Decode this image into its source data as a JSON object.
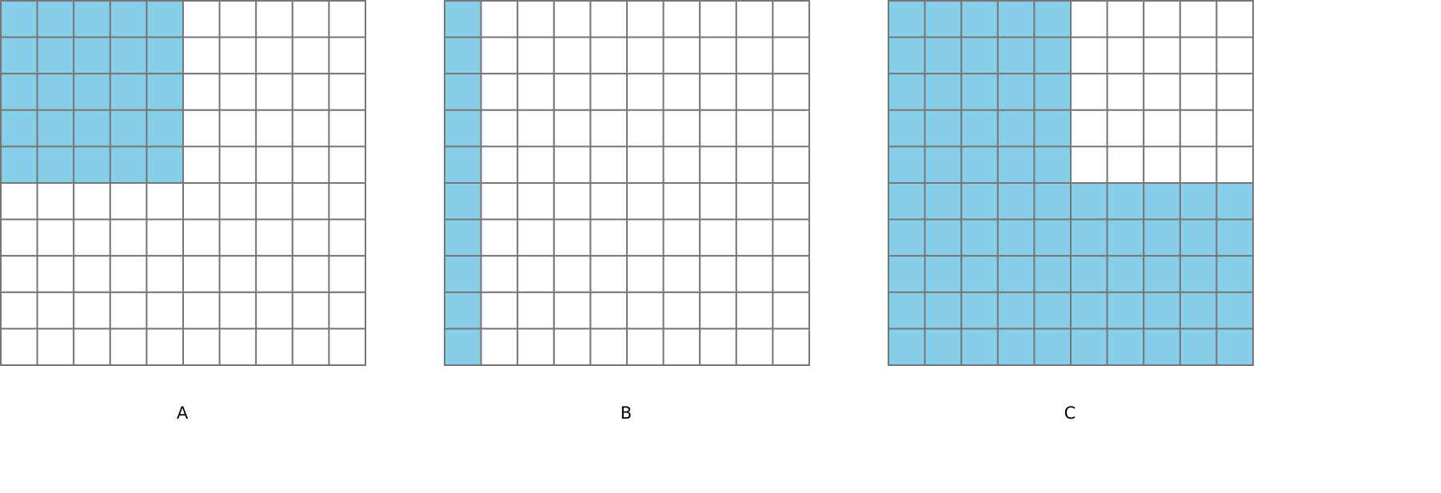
{
  "colors": {
    "shaded": "#87CEE8",
    "empty": "#ffffff",
    "gridline": "#777777"
  },
  "grids": [
    {
      "label": "A",
      "shaded": [
        "1111100000",
        "1111100000",
        "1111100000",
        "1111100000",
        "1111100000",
        "0000000000",
        "0000000000",
        "0000000000",
        "0000000000",
        "0000000000"
      ]
    },
    {
      "label": "B",
      "shaded": [
        "1000000000",
        "1000000000",
        "1000000000",
        "1000000000",
        "1000000000",
        "1000000000",
        "1000000000",
        "1000000000",
        "1000000000",
        "1000000000"
      ]
    },
    {
      "label": "C",
      "shaded": [
        "1111100000",
        "1111100000",
        "1111100000",
        "1111100000",
        "1111100000",
        "1111111111",
        "1111111111",
        "1111111111",
        "1111111111",
        "1111111111"
      ]
    }
  ]
}
